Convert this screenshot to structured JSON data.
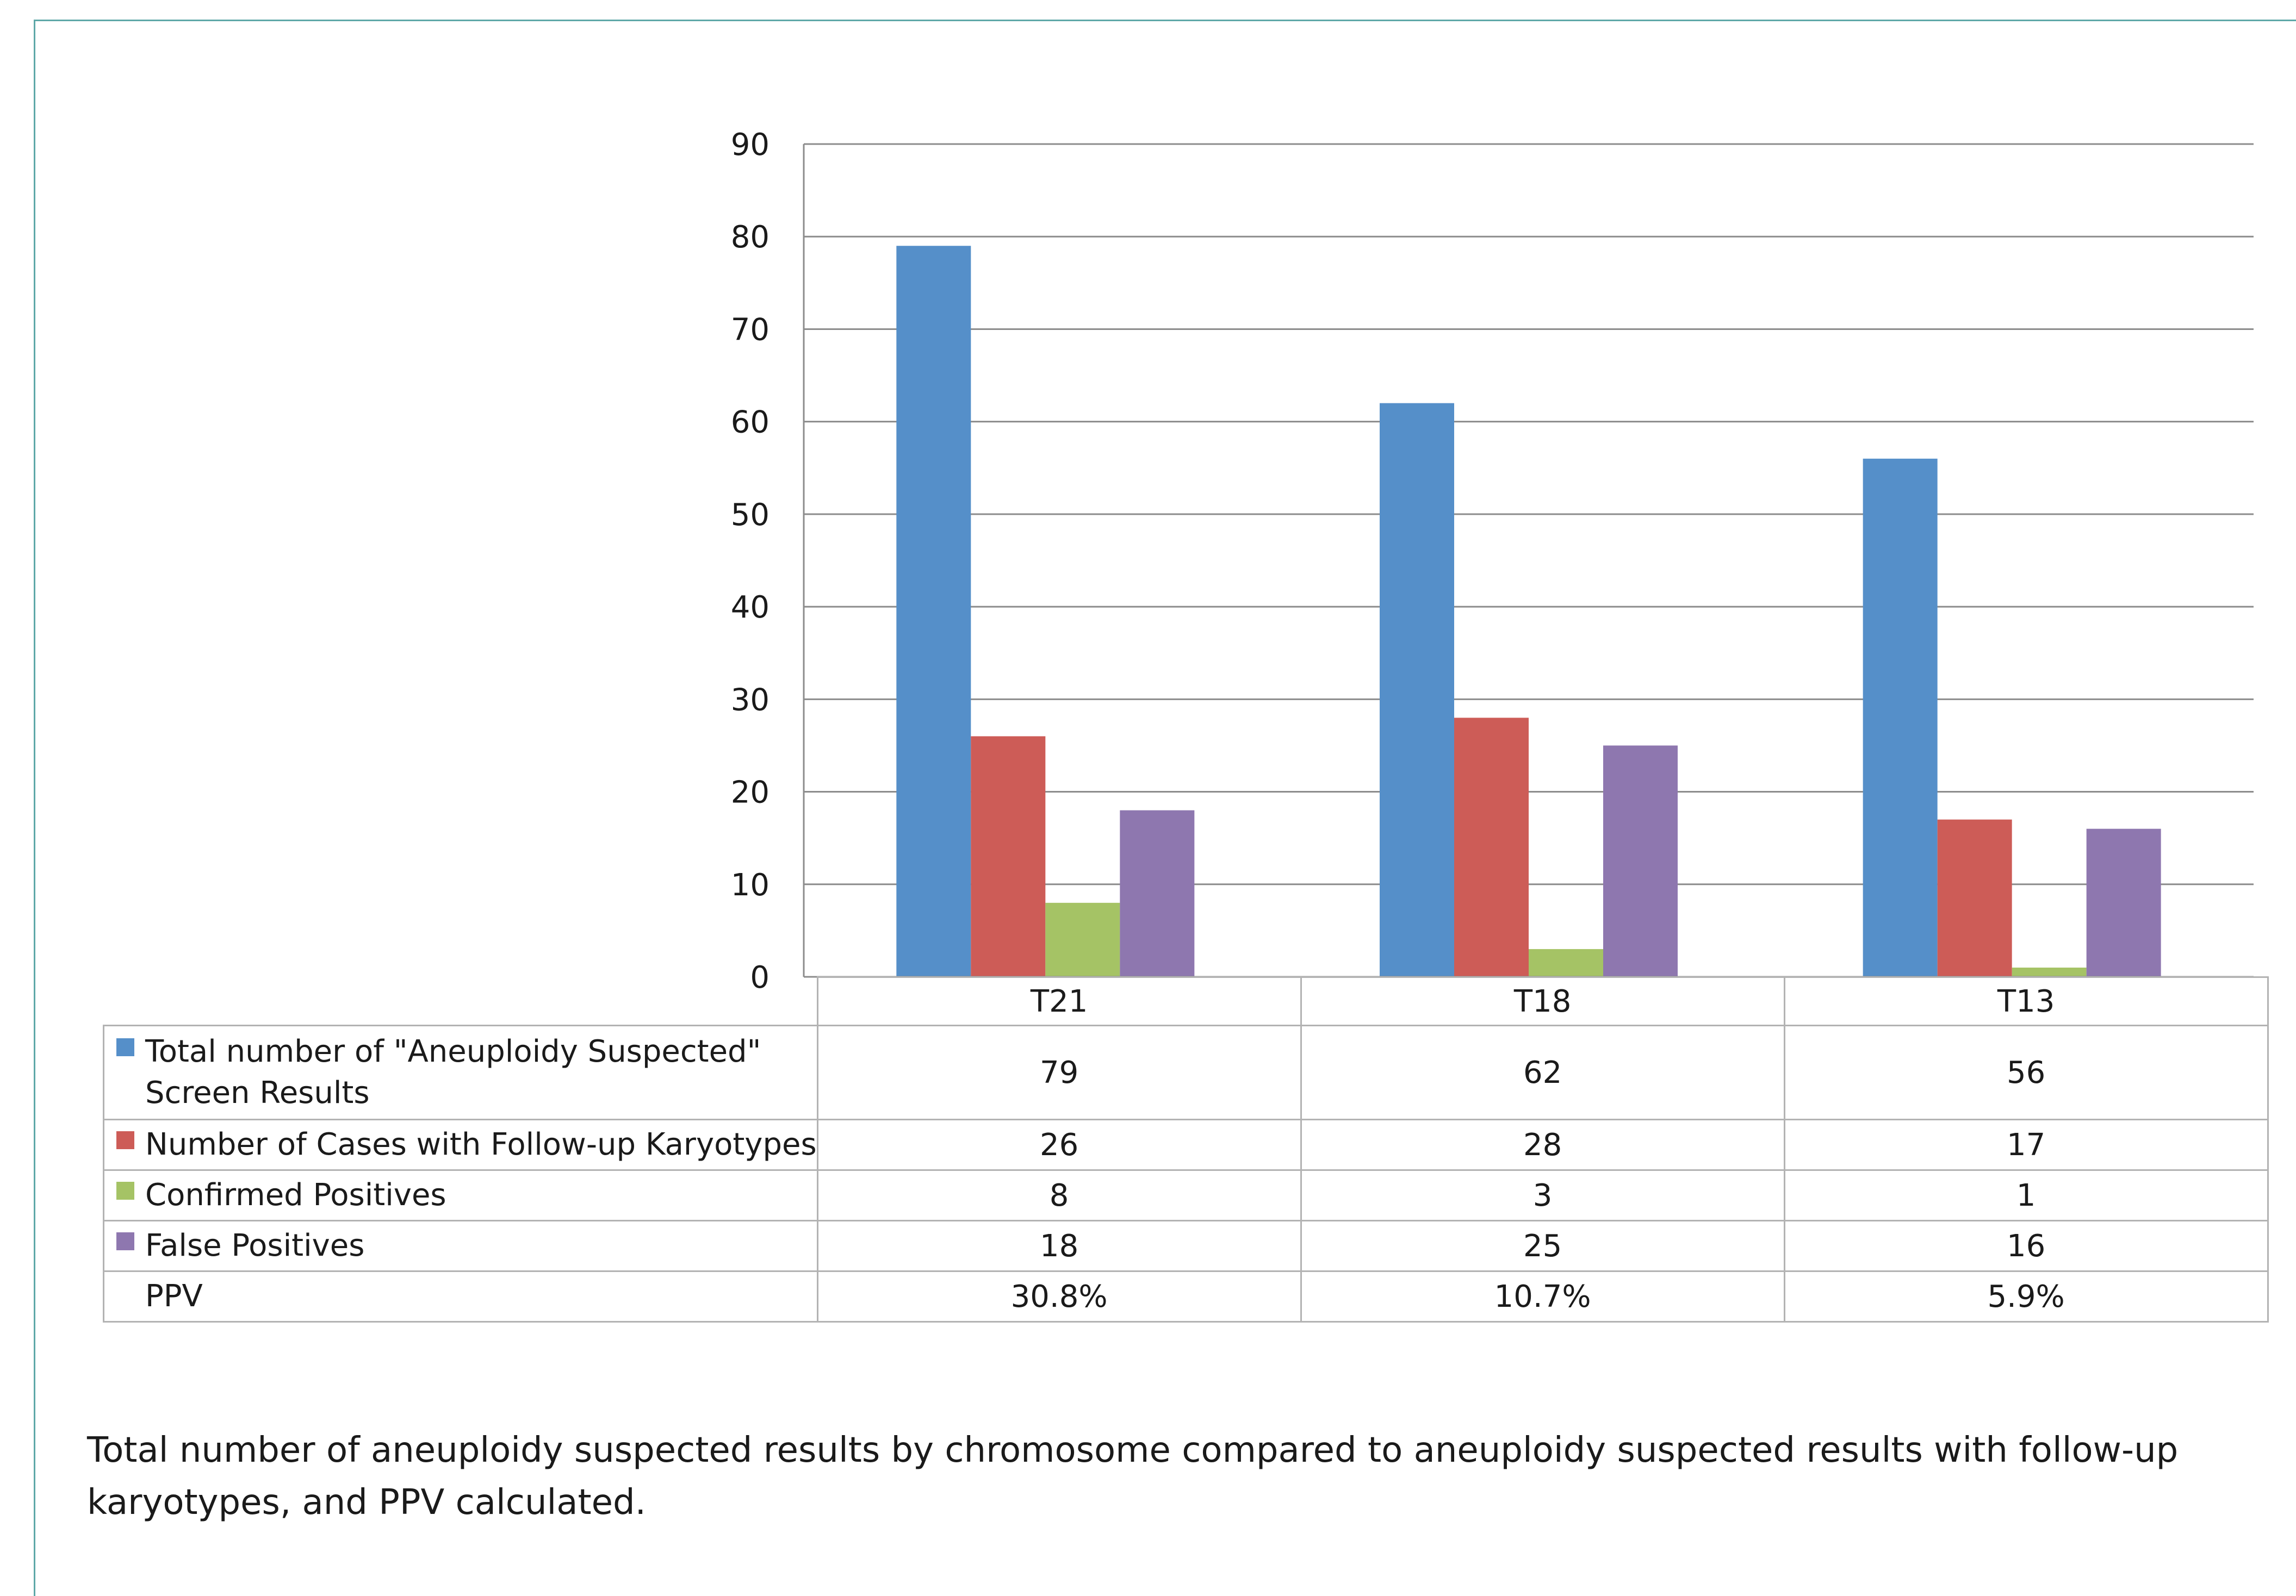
{
  "chart_data": {
    "type": "bar",
    "categories": [
      "T21",
      "T18",
      "T13"
    ],
    "series": [
      {
        "name": "Total number of \"Aneuploidy Suspected\" Screen Results",
        "color": "#558fc9",
        "values": [
          79,
          62,
          56
        ]
      },
      {
        "name": "Number of Cases with Follow-up Karyotypes",
        "color": "#cd5c57",
        "values": [
          26,
          28,
          17
        ]
      },
      {
        "name": "Confirmed Positives",
        "color": "#a5c365",
        "values": [
          8,
          3,
          1
        ]
      },
      {
        "name": "False Positives",
        "color": "#8e77af",
        "values": [
          18,
          25,
          16
        ]
      }
    ],
    "ylim": [
      0,
      90
    ],
    "yticks": [
      "0",
      "10",
      "20",
      "30",
      "40",
      "50",
      "60",
      "70",
      "80",
      "90"
    ],
    "grid": true,
    "legend": "data table below chart",
    "data_table": {
      "rows": [
        {
          "label": "Total number of \"Aneuploidy Suspected\" Screen Results",
          "color": "#558fc9",
          "cells": [
            "79",
            "62",
            "56"
          ]
        },
        {
          "label": "Number of Cases with Follow-up Karyotypes",
          "color": "#cd5c57",
          "cells": [
            "26",
            "28",
            "17"
          ]
        },
        {
          "label": "Confirmed Positives",
          "color": "#a5c365",
          "cells": [
            "8",
            "3",
            "1"
          ]
        },
        {
          "label": "False Positives",
          "color": "#8e77af",
          "cells": [
            "18",
            "25",
            "16"
          ]
        },
        {
          "label": "PPV",
          "color": "",
          "cells": [
            "30.8%",
            "10.7%",
            "5.9%"
          ]
        }
      ]
    }
  },
  "caption": "Total number of aneuploidy suspected results by chromosome compared to aneuploidy suspected results with follow-up karyotypes, and PPV calculated."
}
